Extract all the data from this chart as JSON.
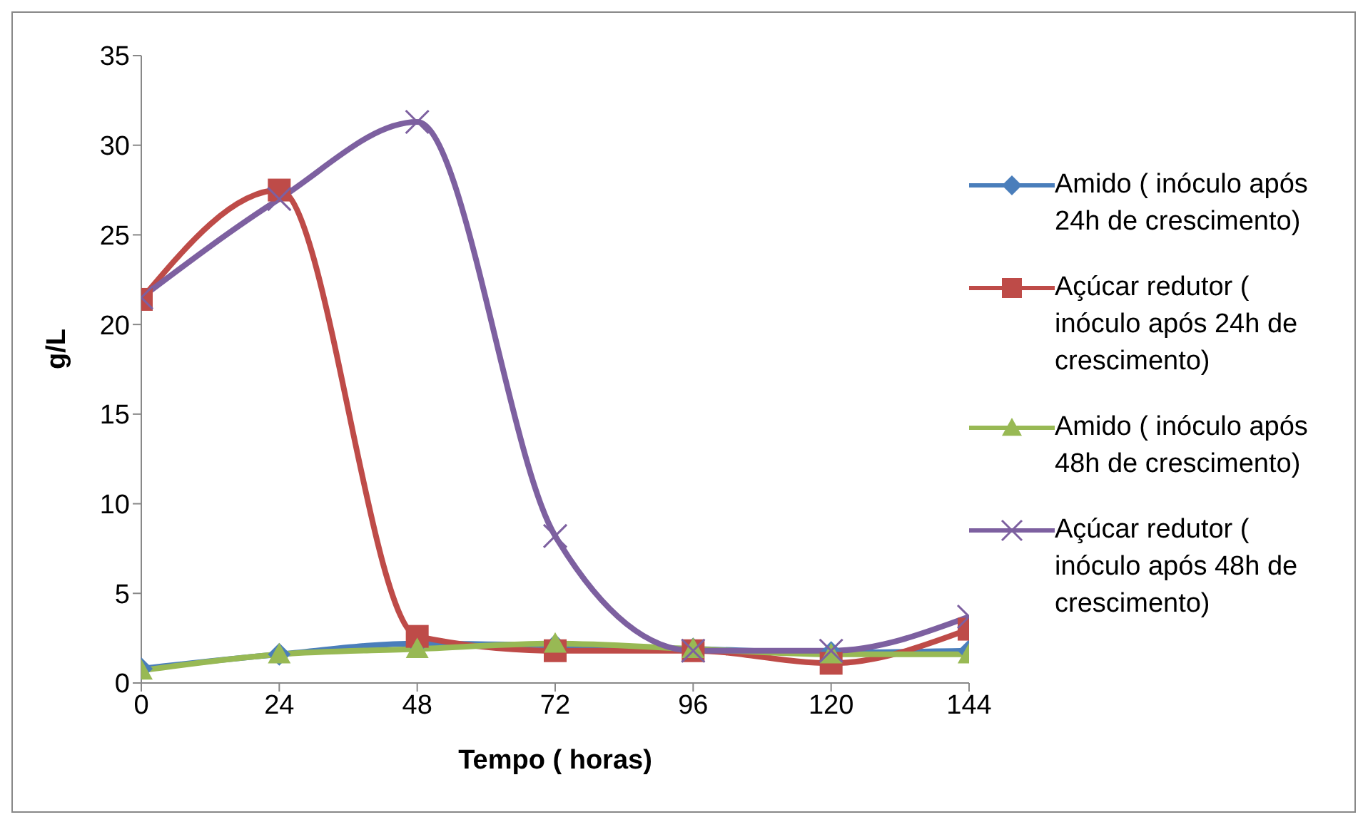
{
  "chart_data": {
    "type": "line",
    "xlabel": "Tempo ( horas)",
    "ylabel": "g/L",
    "x": [
      0,
      24,
      48,
      72,
      96,
      120,
      144
    ],
    "xlim": [
      0,
      144
    ],
    "xticks": [
      0,
      24,
      48,
      72,
      96,
      120,
      144
    ],
    "ylim": [
      0,
      35
    ],
    "yticks": [
      0,
      5,
      10,
      15,
      20,
      25,
      30,
      35
    ],
    "grid": false,
    "legend": "right",
    "series": [
      {
        "name": "Amido ( inóculo após 24h de crescimento)",
        "color": "#4a7ebb",
        "marker": "diamond",
        "values": [
          0.8,
          1.6,
          2.2,
          2.1,
          1.9,
          1.7,
          1.8
        ]
      },
      {
        "name": "Açúcar redutor ( inóculo após 24h de crescimento)",
        "color": "#be4b48",
        "marker": "square",
        "values": [
          21.4,
          27.5,
          2.6,
          1.8,
          1.8,
          1.1,
          3.0
        ]
      },
      {
        "name": "Amido ( inóculo após 48h de crescimento)",
        "color": "#98b954",
        "marker": "triangle",
        "values": [
          0.7,
          1.6,
          1.9,
          2.2,
          1.9,
          1.6,
          1.6
        ]
      },
      {
        "name": "Açúcar redutor ( inóculo após 48h de crescimento)",
        "color": "#7d60a0",
        "marker": "cross",
        "values": [
          21.5,
          27.0,
          31.3,
          8.2,
          1.8,
          1.8,
          3.7
        ]
      }
    ]
  }
}
